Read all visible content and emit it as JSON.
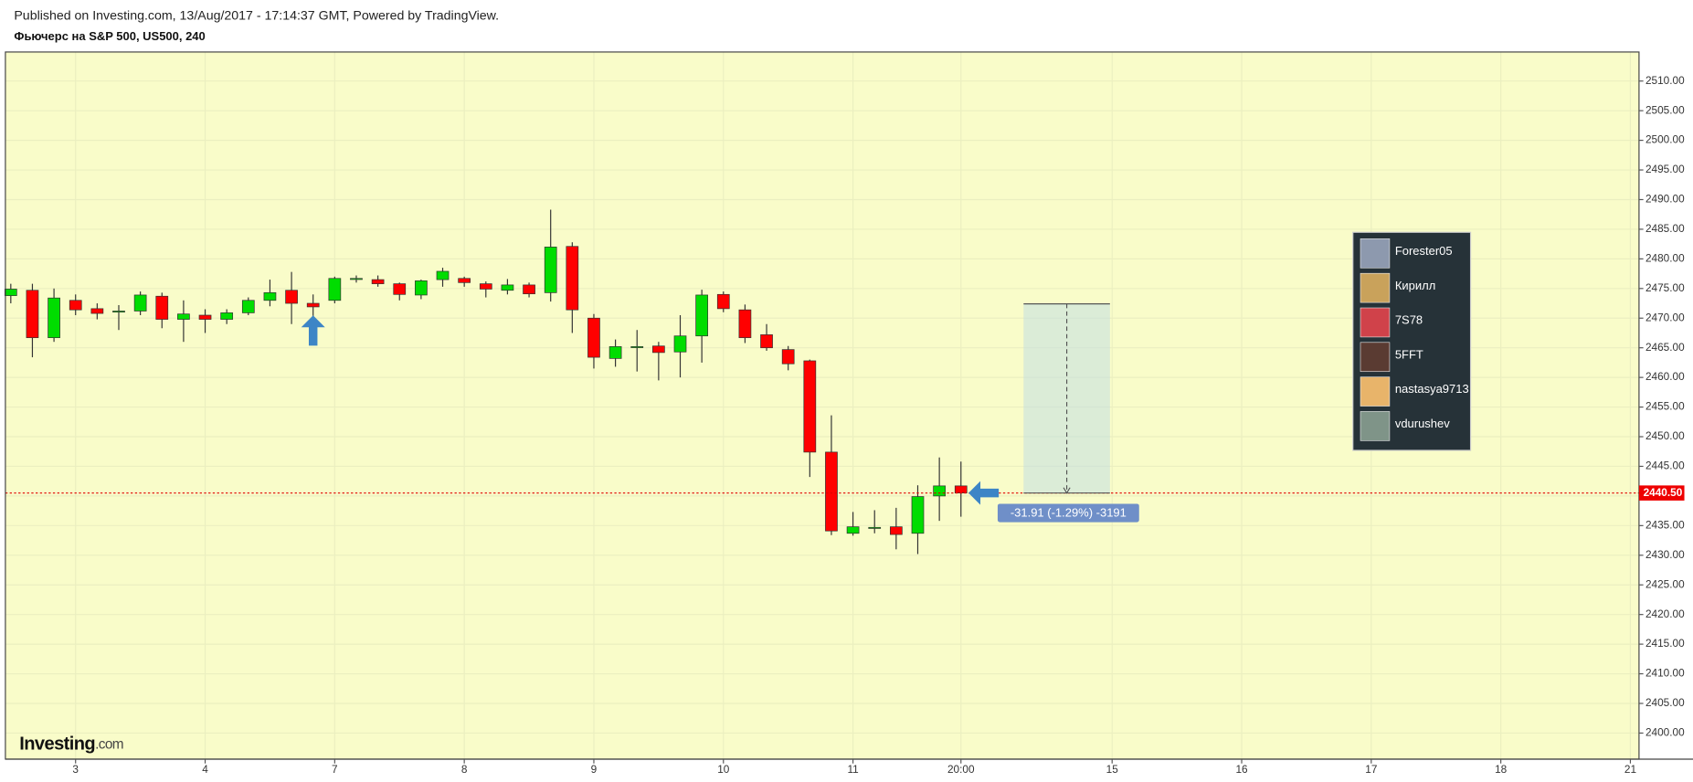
{
  "chart_data": {
    "type": "candlestick",
    "published": "Published on Investing.com, 13/Aug/2017 - 17:14:37 GMT, Powered by TradingView.",
    "title": "Фьючерс на S&P 500, US500, 240",
    "up_color": "#00dd00",
    "down_color": "#ff0000",
    "grid": true,
    "ylim": [
      2395.6,
      2514.9
    ],
    "yticks": [
      {
        "value": 2400,
        "label": "2400.00"
      },
      {
        "value": 2405,
        "label": "2405.00"
      },
      {
        "value": 2410,
        "label": "2410.00"
      },
      {
        "value": 2415,
        "label": "2415.00"
      },
      {
        "value": 2420,
        "label": "2420.00"
      },
      {
        "value": 2425,
        "label": "2425.00"
      },
      {
        "value": 2430,
        "label": "2430.00"
      },
      {
        "value": 2435,
        "label": "2435.00"
      },
      {
        "value": 2440,
        "label": "2440.00"
      },
      {
        "value": 2445,
        "label": "2445.00"
      },
      {
        "value": 2450,
        "label": "2450.00"
      },
      {
        "value": 2455,
        "label": "2455.00"
      },
      {
        "value": 2460,
        "label": "2460.00"
      },
      {
        "value": 2465,
        "label": "2465.00"
      },
      {
        "value": 2470,
        "label": "2470.00"
      },
      {
        "value": 2475,
        "label": "2475.00"
      },
      {
        "value": 2480,
        "label": "2480.00"
      },
      {
        "value": 2485,
        "label": "2485.00"
      },
      {
        "value": 2490,
        "label": "2490.00"
      },
      {
        "value": 2495,
        "label": "2495.00"
      },
      {
        "value": 2500,
        "label": "2500.00"
      },
      {
        "value": 2505,
        "label": "2505.00"
      },
      {
        "value": 2510,
        "label": "2510.00"
      }
    ],
    "xlim": [
      -0.25,
      75.4
    ],
    "xticks": [
      {
        "value": 3,
        "label": "3"
      },
      {
        "value": 9,
        "label": "4"
      },
      {
        "value": 15,
        "label": "7"
      },
      {
        "value": 21,
        "label": "8"
      },
      {
        "value": 27,
        "label": "9"
      },
      {
        "value": 33,
        "label": "10"
      },
      {
        "value": 39,
        "label": "11"
      },
      {
        "value": 44,
        "label": "20:00"
      },
      {
        "value": 51,
        "label": "15"
      },
      {
        "value": 57,
        "label": "16"
      },
      {
        "value": 63,
        "label": "17"
      },
      {
        "value": 69,
        "label": "18"
      },
      {
        "value": 75,
        "label": "21"
      }
    ],
    "candles": [
      {
        "open": 2473.8,
        "high": 2475.8,
        "low": 2472.5,
        "close": 2474.9
      },
      {
        "open": 2474.7,
        "high": 2475.8,
        "low": 2463.4,
        "close": 2466.7
      },
      {
        "open": 2466.7,
        "high": 2475.0,
        "low": 2466.0,
        "close": 2473.4
      },
      {
        "open": 2473.0,
        "high": 2474.0,
        "low": 2470.5,
        "close": 2471.4
      },
      {
        "open": 2471.6,
        "high": 2472.5,
        "low": 2469.8,
        "close": 2470.8
      },
      {
        "open": 2471.1,
        "high": 2472.2,
        "low": 2468.0,
        "close": 2471.2
      },
      {
        "open": 2471.2,
        "high": 2474.5,
        "low": 2470.5,
        "close": 2473.9
      },
      {
        "open": 2473.7,
        "high": 2474.3,
        "low": 2468.3,
        "close": 2469.8
      },
      {
        "open": 2469.8,
        "high": 2473.0,
        "low": 2466.0,
        "close": 2470.7
      },
      {
        "open": 2470.5,
        "high": 2471.5,
        "low": 2467.5,
        "close": 2469.8
      },
      {
        "open": 2469.8,
        "high": 2471.5,
        "low": 2469.0,
        "close": 2470.9
      },
      {
        "open": 2470.9,
        "high": 2473.5,
        "low": 2470.5,
        "close": 2473.0
      },
      {
        "open": 2473.0,
        "high": 2476.5,
        "low": 2472.0,
        "close": 2474.3
      },
      {
        "open": 2474.7,
        "high": 2477.8,
        "low": 2469.0,
        "close": 2472.5
      },
      {
        "open": 2472.5,
        "high": 2474.0,
        "low": 2470.0,
        "close": 2471.9
      },
      {
        "open": 2473.0,
        "high": 2477.0,
        "low": 2472.5,
        "close": 2476.7
      },
      {
        "open": 2476.6,
        "high": 2477.2,
        "low": 2476.0,
        "close": 2476.7
      },
      {
        "open": 2476.5,
        "high": 2477.2,
        "low": 2475.3,
        "close": 2475.8
      },
      {
        "open": 2475.8,
        "high": 2476.0,
        "low": 2473.0,
        "close": 2474.0
      },
      {
        "open": 2473.9,
        "high": 2476.5,
        "low": 2473.2,
        "close": 2476.3
      },
      {
        "open": 2476.5,
        "high": 2478.5,
        "low": 2475.3,
        "close": 2477.9
      },
      {
        "open": 2476.7,
        "high": 2477.0,
        "low": 2475.3,
        "close": 2476.0
      },
      {
        "open": 2475.8,
        "high": 2476.2,
        "low": 2473.5,
        "close": 2474.9
      },
      {
        "open": 2474.7,
        "high": 2476.6,
        "low": 2474.0,
        "close": 2475.6
      },
      {
        "open": 2475.6,
        "high": 2476.0,
        "low": 2473.5,
        "close": 2474.1
      },
      {
        "open": 2474.3,
        "high": 2488.3,
        "low": 2472.8,
        "close": 2482.0
      },
      {
        "open": 2482.1,
        "high": 2482.8,
        "low": 2467.5,
        "close": 2471.4
      },
      {
        "open": 2470.0,
        "high": 2470.7,
        "low": 2461.5,
        "close": 2463.4
      },
      {
        "open": 2463.2,
        "high": 2466.4,
        "low": 2461.8,
        "close": 2465.2
      },
      {
        "open": 2465.1,
        "high": 2468.0,
        "low": 2461.0,
        "close": 2465.2
      },
      {
        "open": 2465.3,
        "high": 2466.0,
        "low": 2459.5,
        "close": 2464.2
      },
      {
        "open": 2464.3,
        "high": 2470.5,
        "low": 2460.0,
        "close": 2467.0
      },
      {
        "open": 2467.0,
        "high": 2474.8,
        "low": 2462.5,
        "close": 2473.9
      },
      {
        "open": 2474.0,
        "high": 2474.5,
        "low": 2471.0,
        "close": 2471.6
      },
      {
        "open": 2471.4,
        "high": 2472.3,
        "low": 2465.8,
        "close": 2466.7
      },
      {
        "open": 2467.2,
        "high": 2469.0,
        "low": 2464.5,
        "close": 2465.0
      },
      {
        "open": 2464.7,
        "high": 2465.3,
        "low": 2461.2,
        "close": 2462.3
      },
      {
        "open": 2462.8,
        "high": 2463.0,
        "low": 2443.2,
        "close": 2447.4
      },
      {
        "open": 2447.4,
        "high": 2453.6,
        "low": 2433.4,
        "close": 2434.1
      },
      {
        "open": 2433.7,
        "high": 2437.3,
        "low": 2433.3,
        "close": 2434.8
      },
      {
        "open": 2434.6,
        "high": 2437.6,
        "low": 2433.7,
        "close": 2434.7
      },
      {
        "open": 2434.8,
        "high": 2438.0,
        "low": 2431.0,
        "close": 2433.5
      },
      {
        "open": 2433.7,
        "high": 2441.8,
        "low": 2430.2,
        "close": 2439.9
      },
      {
        "open": 2440.0,
        "high": 2446.5,
        "low": 2435.8,
        "close": 2441.7
      },
      {
        "open": 2441.7,
        "high": 2445.8,
        "low": 2436.5,
        "close": 2440.5
      }
    ],
    "last_price": {
      "value": 2440.5,
      "label": "2440.50"
    },
    "measure": {
      "from": 2472.41,
      "to": 2440.5,
      "label": "-31.91 (-1.29%) -3191"
    },
    "users": [
      "Forester05",
      "Кирилл",
      "7S78",
      "5FFT",
      "nastasya9713",
      "vdurushev"
    ],
    "logo": "Investing",
    "logo_suffix": ".com"
  }
}
